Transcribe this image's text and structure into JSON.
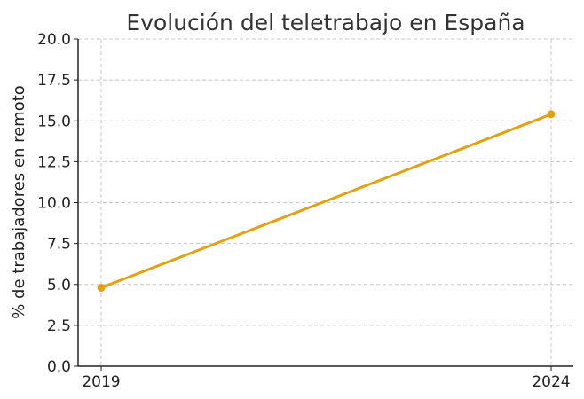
{
  "chart_data": {
    "type": "line",
    "title": "Evolución del teletrabajo en España",
    "xlabel": "",
    "ylabel": "% de trabajadores en remoto",
    "x": [
      "2019",
      "2024"
    ],
    "series": [
      {
        "values": [
          4.8,
          15.4
        ],
        "color": "#E3A10D"
      }
    ],
    "ylim": [
      0,
      20
    ],
    "yticks": [
      0.0,
      2.5,
      5.0,
      7.5,
      10.0,
      12.5,
      15.0,
      17.5,
      20.0
    ],
    "ytick_labels": [
      "0.0",
      "2.5",
      "5.0",
      "7.5",
      "10.0",
      "12.5",
      "15.0",
      "17.5",
      "20.0"
    ],
    "xtick_labels": [
      "2019",
      "2024"
    ],
    "grid": true,
    "legend": "none"
  }
}
